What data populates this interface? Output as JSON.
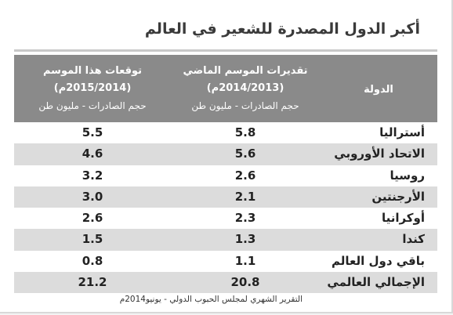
{
  "title": "أكبر الدول المصدرة للشعير في العالم",
  "headers": {
    "country": "الدولة",
    "last_season_l1": "تقديرات الموسم الماضي",
    "last_season_l2": "(2014/2013م)",
    "last_season_l3": "حجم الصادرات - مليون طن",
    "this_season_l1": "توقعات هذا الموسم",
    "this_season_l2": "(2015/2014م)",
    "this_season_l3": "حجم الصادرات - مليون طن"
  },
  "rows": [
    {
      "country": "أستراليا",
      "last": "5.8",
      "this": "5.5"
    },
    {
      "country": "الاتحاد الأوروبي",
      "last": "5.6",
      "this": "4.6"
    },
    {
      "country": "روسيا",
      "last": "2.6",
      "this": "3.2"
    },
    {
      "country": "الأرجنتين",
      "last": "2.1",
      "this": "3.0"
    },
    {
      "country": "أوكرانيا",
      "last": "2.3",
      "this": "2.6"
    },
    {
      "country": "كندا",
      "last": "1.3",
      "this": "1.5"
    },
    {
      "country": "باقي دول العالم",
      "last": "1.1",
      "this": "0.8"
    },
    {
      "country": "الإجمالي العالمي",
      "last": "20.8",
      "this": "21.2"
    }
  ],
  "source": "التقرير الشهري لمجلس الحبوب الدولي - يونيو2014م",
  "colors": {
    "header_bg": "#8a8a8a",
    "row_shade": "#dcdcdc",
    "rule": "#c9c9c9"
  }
}
